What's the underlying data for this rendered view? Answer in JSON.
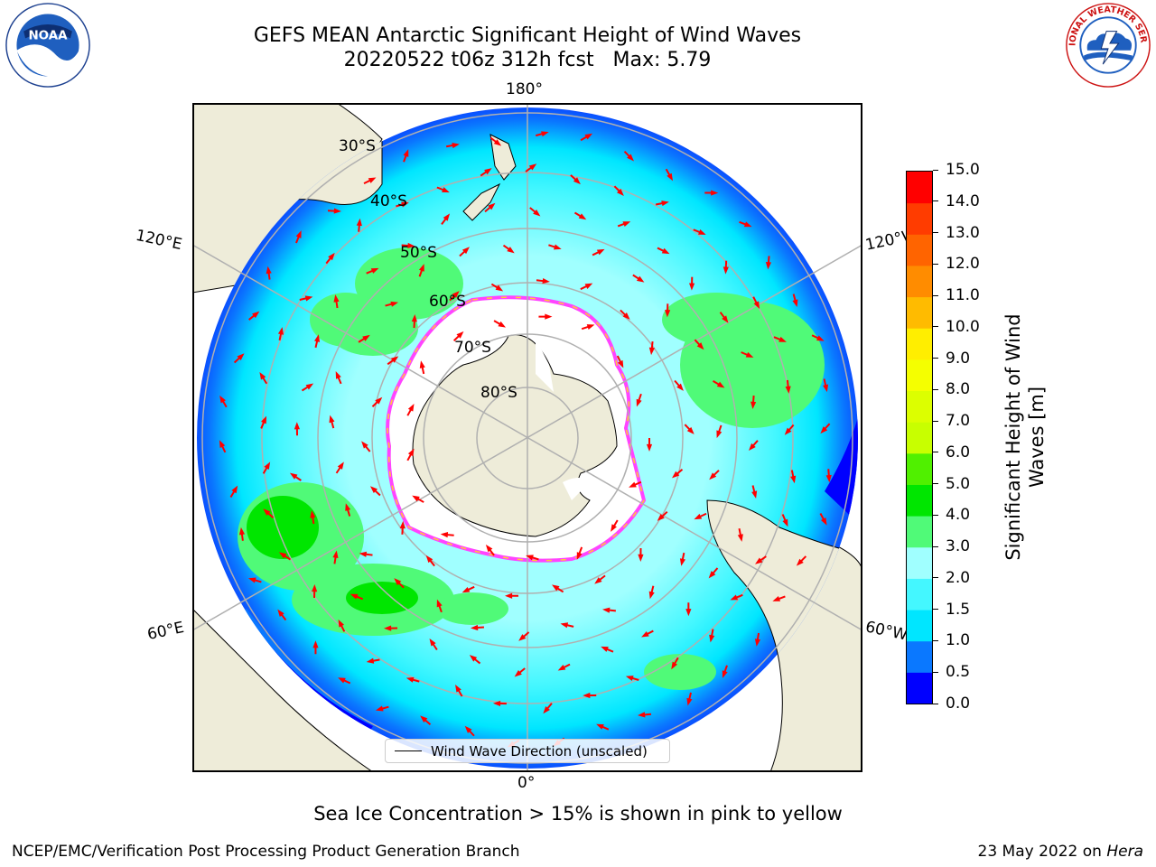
{
  "title": {
    "line1": "GEFS MEAN Antarctic Significant Height of Wind Waves",
    "line2": "20220522 t06z 312h fcst   Max: 5.79"
  },
  "map": {
    "longitude_labels": {
      "top": "180°",
      "bottom": "0°",
      "upper_left": "120°E",
      "upper_right": "120°W",
      "lower_left": "60°E",
      "lower_right": "60°W"
    },
    "latitude_labels": [
      "30°S",
      "40°S",
      "50°S",
      "60°S",
      "70°S",
      "80°S"
    ],
    "colors": {
      "land": "#eeecd9",
      "ice": "#ffffff",
      "ice_edge_pink": "#ff44ff",
      "ice_edge_yellow": "#ffcc33",
      "arrow": "#ff0000",
      "grid": "#b0b0b0"
    }
  },
  "legend": {
    "label": "Wind Wave Direction (unscaled)"
  },
  "colorbar": {
    "label_line1": "Significant Height of Wind",
    "label_line2": "Waves [m]",
    "ticks": [
      "0.0",
      "0.5",
      "1.0",
      "1.5",
      "2.0",
      "3.0",
      "4.0",
      "5.0",
      "6.0",
      "7.0",
      "8.0",
      "9.0",
      "10.0",
      "11.0",
      "12.0",
      "13.0",
      "14.0",
      "15.0"
    ],
    "colors": [
      "#0000ff",
      "#0a78ff",
      "#00e6ff",
      "#44f7ff",
      "#a0ffff",
      "#50fa78",
      "#00e600",
      "#50f000",
      "#c8ff00",
      "#dcff00",
      "#f5ff00",
      "#ffee00",
      "#ffbb00",
      "#ff8c00",
      "#ff6400",
      "#ff3c00",
      "#ff0000"
    ]
  },
  "caption": "Sea Ice Concentration > 15% is shown in pink to yellow",
  "footer": {
    "left": "NCEP/EMC/Verification Post Processing Product Generation Branch",
    "right_prefix": "23 May 2022 on ",
    "right_italic": "Hera"
  },
  "logos": {
    "noaa_text": "NOAA",
    "nws_text": "NATIONAL WEATHER SERVICE"
  }
}
